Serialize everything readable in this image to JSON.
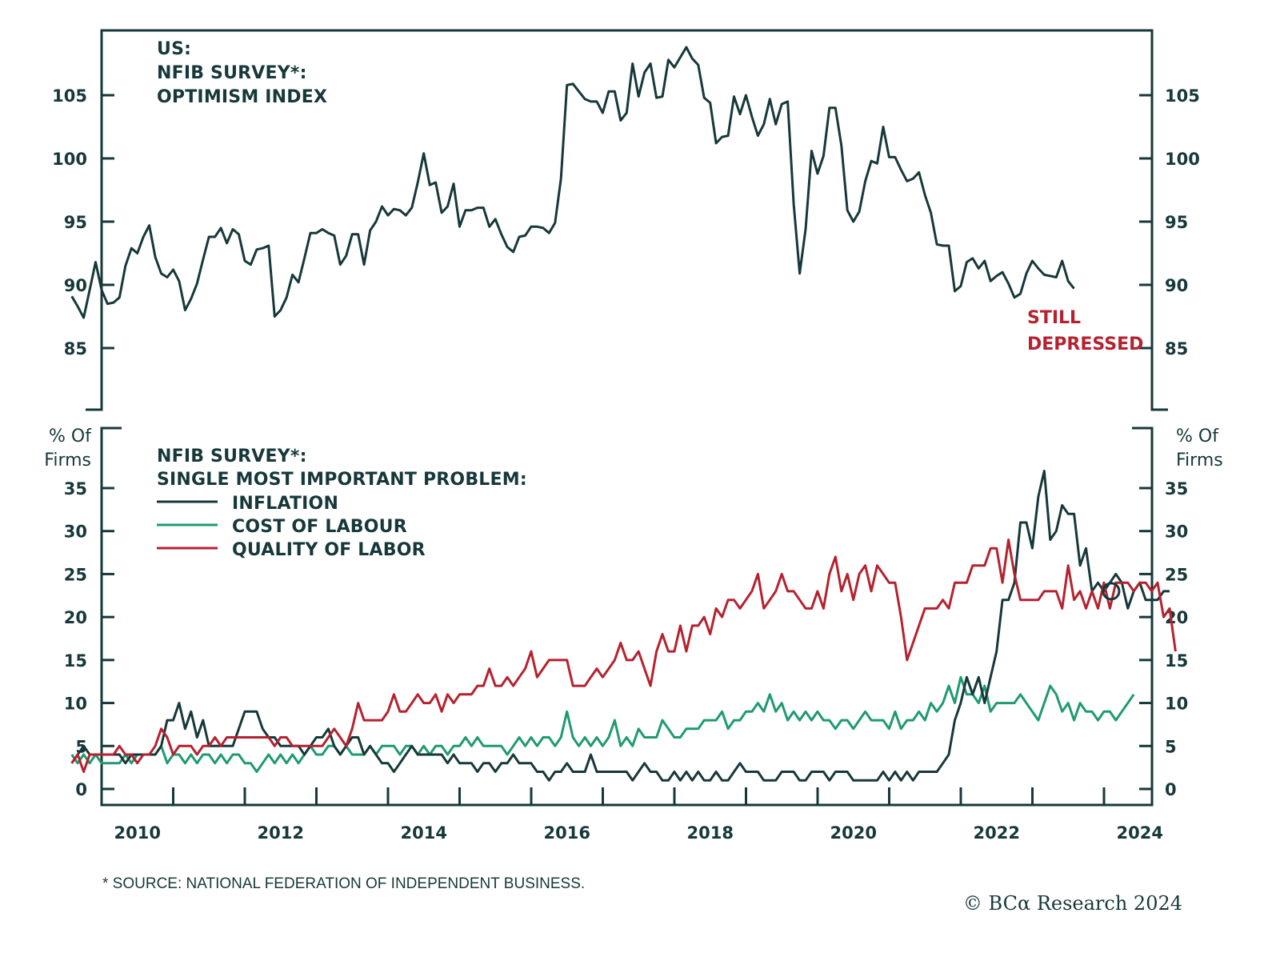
{
  "colors": {
    "axis": "#17383a",
    "inflation": "#17383a",
    "cost_of_labour": "#1f9a72",
    "quality_of_labor": "#b5222f",
    "optimism": "#17383a",
    "annotation": "#b5222f"
  },
  "footnote": "* SOURCE: NATIONAL FEDERATION OF INDEPENDENT BUSINESS.",
  "credit": "© BCα Research 2024",
  "chart_data": [
    {
      "type": "line",
      "panel": "top",
      "title_lines": [
        "US:",
        "NFIB SURVEY*:",
        "OPTIMISM INDEX"
      ],
      "xlabel": "",
      "ylabel": "",
      "xlim": [
        2009.6,
        2024.8
      ],
      "ylim": [
        80,
        110
      ],
      "yticks": [
        85,
        90,
        95,
        100,
        105
      ],
      "ytick_labels": [
        "85",
        "90",
        "95",
        "100",
        "105"
      ],
      "annotation": {
        "lines": [
          "STILL",
          "DEPRESSED"
        ],
        "x": 2022.4,
        "y": 87
      },
      "series": [
        {
          "name": "Optimism Index",
          "x_start": 2009.583,
          "x_step": 0.08333,
          "values": [
            89.1,
            88.3,
            87.4,
            89.6,
            91.8,
            89.6,
            88.5,
            88.6,
            89.0,
            91.5,
            92.9,
            92.5,
            93.8,
            94.7,
            92.2,
            90.9,
            90.6,
            91.2,
            90.3,
            88.0,
            88.9,
            90.1,
            92.0,
            93.8,
            93.8,
            94.5,
            93.3,
            94.4,
            94.0,
            91.9,
            91.6,
            92.8,
            92.9,
            93.1,
            87.5,
            88.0,
            89.0,
            90.8,
            90.2,
            92.1,
            94.1,
            94.1,
            94.4,
            94.1,
            93.9,
            91.6,
            92.3,
            94.0,
            94.0,
            91.6,
            94.3,
            95.0,
            96.2,
            95.5,
            96.0,
            95.9,
            95.5,
            96.1,
            98.1,
            100.4,
            97.9,
            98.1,
            95.7,
            96.2,
            98.0,
            94.6,
            95.9,
            95.9,
            96.1,
            96.1,
            94.6,
            95.2,
            94.0,
            93.0,
            92.6,
            93.8,
            93.9,
            94.6,
            94.6,
            94.5,
            94.1,
            94.9,
            98.4,
            105.8,
            105.9,
            105.3,
            104.7,
            104.5,
            104.5,
            103.6,
            105.3,
            105.3,
            103.0,
            103.6,
            107.5,
            104.9,
            106.8,
            107.5,
            104.8,
            104.9,
            107.8,
            107.2,
            108.0,
            108.8,
            107.9,
            107.4,
            104.8,
            104.4,
            101.2,
            101.7,
            101.8,
            104.9,
            103.5,
            105.0,
            103.3,
            101.8,
            102.7,
            104.7,
            102.7,
            104.3,
            104.5,
            96.4,
            90.9,
            94.4,
            100.6,
            98.8,
            100.2,
            104.0,
            104.0,
            101.0,
            95.9,
            95.0,
            95.8,
            98.2,
            99.8,
            99.6,
            102.5,
            100.1,
            100.1,
            99.1,
            98.2,
            98.4,
            98.9,
            97.1,
            95.7,
            93.2,
            93.1,
            93.1,
            89.5,
            89.9,
            91.8,
            92.1,
            91.3,
            91.9,
            90.3,
            90.7,
            91.0,
            90.1,
            89.0,
            89.3,
            90.9,
            91.9,
            91.3,
            90.8,
            90.7,
            90.6,
            91.9,
            90.3,
            89.7
          ]
        }
      ]
    },
    {
      "type": "line",
      "panel": "bottom",
      "title_lines": [
        "NFIB SURVEY*:",
        "SINGLE MOST IMPORTANT PROBLEM:"
      ],
      "ylabel": "% Of Firms",
      "xlim": [
        2009.6,
        2024.8
      ],
      "ylim": [
        -2,
        42
      ],
      "yticks": [
        0,
        5,
        10,
        15,
        20,
        25,
        30,
        35
      ],
      "ytick_labels": [
        "0",
        "5",
        "10",
        "15",
        "20",
        "25",
        "30",
        "35"
      ],
      "xticks": [
        2010,
        2011,
        2012,
        2013,
        2014,
        2015,
        2016,
        2017,
        2018,
        2019,
        2020,
        2021,
        2022,
        2023,
        2024
      ],
      "xtick_labels": [
        "2010",
        "2012",
        "2014",
        "2016",
        "2018",
        "2020",
        "2022",
        "2024"
      ],
      "legend": {
        "placement": "top-left",
        "entries": [
          "INFLATION",
          "COST OF LABOUR",
          "QUALITY OF LABOR"
        ]
      },
      "marker": {
        "series": "INFLATION",
        "x": 2024.1,
        "y": 23,
        "shape": "circle"
      },
      "series": [
        {
          "name": "INFLATION",
          "color_key": "inflation",
          "x_start": 2009.583,
          "x_step": 0.08333,
          "values": [
            3,
            4,
            5,
            4,
            4,
            4,
            4,
            4,
            4,
            3,
            4,
            4,
            4,
            4,
            4,
            5,
            8,
            8,
            10,
            7,
            9,
            6,
            8,
            5,
            5,
            5,
            5,
            5,
            7,
            9,
            9,
            9,
            7,
            6,
            6,
            5,
            5,
            5,
            5,
            4,
            5,
            6,
            6,
            7,
            5,
            4,
            5,
            6,
            6,
            4,
            5,
            4,
            3,
            3,
            2,
            3,
            4,
            5,
            4,
            4,
            4,
            4,
            4,
            3,
            4,
            3,
            3,
            3,
            2,
            3,
            3,
            2,
            3,
            3,
            4,
            3,
            3,
            3,
            2,
            2,
            1,
            2,
            2,
            3,
            2,
            2,
            2,
            4,
            2,
            2,
            2,
            2,
            2,
            2,
            1,
            2,
            3,
            2,
            2,
            1,
            1,
            2,
            1,
            2,
            1,
            2,
            1,
            1,
            2,
            1,
            1,
            2,
            3,
            2,
            2,
            2,
            1,
            1,
            1,
            2,
            2,
            2,
            1,
            1,
            2,
            2,
            2,
            1,
            2,
            2,
            2,
            1,
            1,
            1,
            1,
            1,
            2,
            1,
            2,
            1,
            2,
            1,
            2,
            2,
            2,
            2,
            3,
            4,
            8,
            10,
            13,
            11,
            13,
            10,
            13,
            16,
            22,
            22,
            24,
            31,
            31,
            28,
            34,
            37,
            29,
            30,
            33,
            32,
            32,
            26,
            28,
            23,
            24,
            23,
            24,
            25,
            24,
            21,
            23,
            24,
            22,
            22,
            22,
            23,
            23
          ]
        },
        {
          "name": "COST OF LABOUR",
          "color_key": "cost_of_labour",
          "x_start": 2009.583,
          "x_step": 0.08333,
          "values": [
            4,
            3,
            4,
            3,
            4,
            3,
            3,
            3,
            3,
            4,
            3,
            4,
            4,
            4,
            4,
            5,
            3,
            4,
            4,
            3,
            4,
            3,
            4,
            4,
            3,
            4,
            3,
            4,
            4,
            3,
            3,
            2,
            3,
            4,
            3,
            4,
            3,
            4,
            3,
            4,
            5,
            4,
            4,
            5,
            5,
            4,
            5,
            4,
            4,
            4,
            5,
            4,
            5,
            5,
            5,
            4,
            5,
            5,
            4,
            5,
            4,
            5,
            5,
            4,
            5,
            5,
            6,
            5,
            6,
            5,
            5,
            5,
            5,
            4,
            5,
            6,
            5,
            6,
            5,
            6,
            6,
            5,
            6,
            9,
            6,
            5,
            6,
            5,
            6,
            5,
            6,
            8,
            5,
            6,
            5,
            7,
            6,
            6,
            6,
            8,
            7,
            6,
            6,
            7,
            7,
            7,
            8,
            8,
            8,
            9,
            7,
            8,
            8,
            9,
            9,
            10,
            9,
            11,
            9,
            10,
            8,
            9,
            8,
            9,
            8,
            9,
            8,
            8,
            7,
            8,
            8,
            7,
            8,
            9,
            8,
            8,
            8,
            7,
            9,
            7,
            8,
            8,
            9,
            8,
            10,
            9,
            10,
            12,
            10,
            13,
            11,
            11,
            10,
            12,
            9,
            10,
            10,
            10,
            10,
            11,
            10,
            9,
            8,
            10,
            12,
            11,
            9,
            10,
            8,
            10,
            9,
            9,
            8,
            9,
            9,
            8,
            9,
            10,
            11
          ]
        },
        {
          "name": "QUALITY OF LABOR",
          "color_key": "quality_of_labor",
          "x_start": 2009.583,
          "x_step": 0.08333,
          "values": [
            3,
            4,
            2,
            4,
            4,
            4,
            4,
            4,
            5,
            4,
            4,
            3,
            4,
            4,
            5,
            7,
            6,
            4,
            5,
            5,
            5,
            4,
            5,
            5,
            6,
            5,
            6,
            6,
            6,
            6,
            6,
            6,
            6,
            6,
            5,
            6,
            6,
            5,
            5,
            5,
            5,
            5,
            5,
            6,
            7,
            6,
            5,
            7,
            10,
            8,
            8,
            8,
            8,
            9,
            11,
            9,
            9,
            10,
            11,
            10,
            10,
            11,
            9,
            11,
            10,
            11,
            11,
            11,
            12,
            12,
            14,
            12,
            12,
            13,
            12,
            13,
            14,
            16,
            13,
            14,
            15,
            15,
            15,
            15,
            12,
            12,
            12,
            13,
            14,
            13,
            14,
            15,
            17,
            15,
            15,
            16,
            14,
            12,
            16,
            18,
            16,
            16,
            19,
            16,
            19,
            19,
            20,
            18,
            21,
            20,
            22,
            22,
            21,
            22,
            23,
            25,
            21,
            22,
            23,
            25,
            23,
            23,
            22,
            21,
            21,
            23,
            21,
            25,
            27,
            23,
            25,
            22,
            25,
            26,
            23,
            26,
            25,
            24,
            24,
            20,
            15,
            17,
            19,
            21,
            21,
            21,
            22,
            21,
            24,
            24,
            24,
            26,
            26,
            26,
            28,
            28,
            24,
            29,
            25,
            22,
            22,
            22,
            22,
            23,
            23,
            23,
            21,
            26,
            22,
            23,
            21,
            23,
            21,
            24,
            21,
            24,
            24,
            24,
            23,
            24,
            24,
            23,
            24,
            20,
            21,
            16
          ]
        }
      ]
    }
  ]
}
